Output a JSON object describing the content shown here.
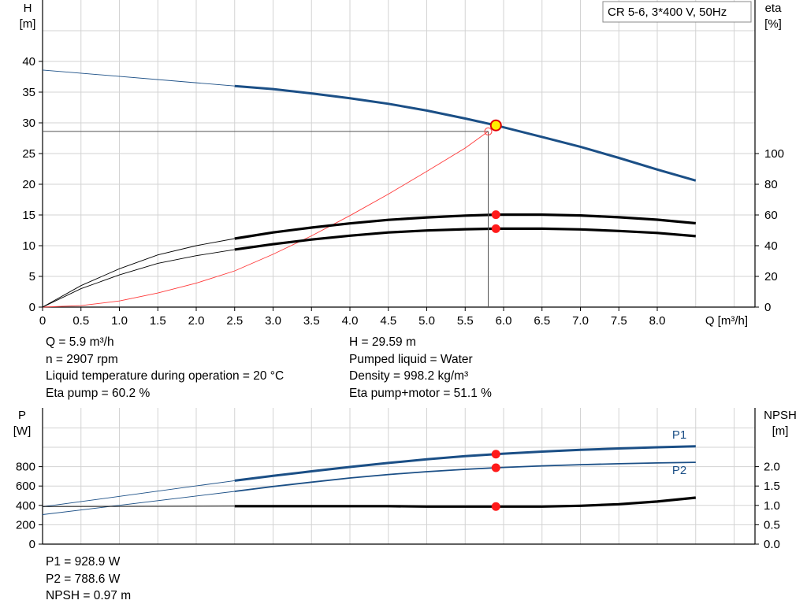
{
  "chart_data": [
    {
      "type": "line",
      "title": "CR 5-6, 3*400 V, 50Hz",
      "xlabel": "Q [m³/h]",
      "ylabel": "H",
      "ylabel_unit": "[m]",
      "y2label": "eta",
      "y2label_unit": "[%]",
      "xlim": [
        0,
        9.2
      ],
      "ylim": [
        0,
        43
      ],
      "y2lim": [
        0,
        172
      ],
      "x_ticks": [
        "0",
        "0.5",
        "1.0",
        "1.5",
        "2.0",
        "2.5",
        "3.0",
        "3.5",
        "4.0",
        "4.5",
        "5.0",
        "5.5",
        "6.0",
        "6.5",
        "7.0",
        "7.5",
        "8.0"
      ],
      "y_ticks": [
        "0",
        "5",
        "10",
        "15",
        "20",
        "25",
        "30",
        "35",
        "40"
      ],
      "y2_ticks": [
        "0",
        "20",
        "40",
        "60",
        "80",
        "100"
      ],
      "grid": true,
      "series": [
        {
          "id": "head",
          "color": "#1b4f86",
          "x": [
            0,
            2.5,
            3.0,
            3.5,
            4.0,
            4.5,
            5.0,
            5.5,
            5.9,
            6.5,
            7.0,
            7.5,
            8.0,
            8.5
          ],
          "values": [
            38.6,
            36.0,
            35.5,
            34.8,
            34.0,
            33.1,
            32.0,
            30.7,
            29.59,
            27.7,
            26.1,
            24.3,
            22.4,
            20.6
          ]
        },
        {
          "id": "eta-pump",
          "color": "#000000",
          "axis": "right",
          "x": [
            0,
            0.5,
            1.0,
            1.5,
            2.0,
            2.5,
            3.0,
            3.5,
            4.0,
            4.5,
            5.0,
            5.5,
            5.9,
            6.5,
            7.0,
            7.5,
            8.0,
            8.5
          ],
          "values": [
            0,
            14,
            25,
            34,
            40,
            44.6,
            48.6,
            51.8,
            54.5,
            56.8,
            58.4,
            59.6,
            60.2,
            60.2,
            59.7,
            58.5,
            56.9,
            54.6
          ]
        },
        {
          "id": "eta-pump-motor",
          "color": "#000000",
          "axis": "right",
          "x": [
            0,
            0.5,
            1.0,
            1.5,
            2.0,
            2.5,
            3.0,
            3.5,
            4.0,
            4.5,
            5.0,
            5.5,
            5.9,
            6.5,
            7.0,
            7.5,
            8.0,
            8.5
          ],
          "values": [
            0,
            12,
            21,
            28.5,
            33.5,
            37.5,
            41,
            44,
            46.5,
            48.6,
            49.9,
            50.7,
            51.1,
            51.1,
            50.6,
            49.6,
            48.3,
            46.2
          ]
        },
        {
          "id": "efficiency-head-curve",
          "color": "#ff3a3a",
          "x": [
            0,
            0.5,
            1.0,
            1.5,
            2.0,
            2.5,
            3.0,
            3.5,
            4.0,
            4.5,
            5.0,
            5.5,
            5.8
          ],
          "values": [
            0,
            0.25,
            1.0,
            2.3,
            3.9,
            5.9,
            8.6,
            11.6,
            14.9,
            18.4,
            22.1,
            25.9,
            28.6
          ]
        }
      ],
      "duty_point": {
        "q": 5.9,
        "h": 29.59,
        "eta_pump": 60.2,
        "eta_total": 51.1
      },
      "reference_point": {
        "q": 5.8,
        "h": 28.6
      }
    },
    {
      "type": "line",
      "ylabel": "P",
      "ylabel_unit": "[W]",
      "y2label": "NPSH",
      "y2label_unit": "[m]",
      "xlim": [
        0,
        9.2
      ],
      "ylim": [
        0,
        1200
      ],
      "y2lim": [
        0,
        3.0
      ],
      "y_ticks": [
        "0",
        "200",
        "400",
        "600",
        "800"
      ],
      "y2_ticks": [
        "0.0",
        "0.5",
        "1.0",
        "1.5",
        "2.0"
      ],
      "grid": true,
      "series": [
        {
          "id": "p1",
          "name": "P1",
          "color": "#1b4f86",
          "x": [
            0,
            2.5,
            3.0,
            3.5,
            4.0,
            4.5,
            5.0,
            5.5,
            5.9,
            6.5,
            7.0,
            7.5,
            8.0,
            8.5
          ],
          "values": [
            385,
            655,
            705,
            752,
            797,
            838,
            876,
            908,
            928.9,
            955,
            973,
            988,
            1000,
            1010
          ]
        },
        {
          "id": "p2",
          "name": "P2",
          "color": "#1b4f86",
          "x": [
            0,
            2.5,
            3.0,
            3.5,
            4.0,
            4.5,
            5.0,
            5.5,
            5.9,
            6.5,
            7.0,
            7.5,
            8.0,
            8.5
          ],
          "values": [
            305,
            545,
            595,
            640,
            683,
            719,
            748,
            772,
            788.6,
            808,
            820,
            830,
            838,
            845
          ]
        },
        {
          "id": "npsh",
          "color": "#000000",
          "axis": "right",
          "x": [
            0,
            2.5,
            3.0,
            3.5,
            4.0,
            4.5,
            5.0,
            5.5,
            5.9,
            6.5,
            7.0,
            7.5,
            8.0,
            8.5
          ],
          "values": [
            0.97,
            0.98,
            0.98,
            0.98,
            0.98,
            0.98,
            0.97,
            0.97,
            0.97,
            0.97,
            0.99,
            1.03,
            1.1,
            1.2
          ]
        }
      ],
      "duty_point": {
        "q": 5.9,
        "p1": 928.9,
        "p2": 788.6,
        "npsh": 0.97
      }
    }
  ],
  "info": {
    "left": [
      "Q = 5.9 m³/h",
      "n = 2907 rpm",
      "Liquid temperature during operation = 20 °C",
      "Eta pump = 60.2 %"
    ],
    "right": [
      "H = 29.59 m",
      "Pumped liquid = Water",
      "Density = 998.2 kg/m³",
      "Eta pump+motor = 51.1 %"
    ],
    "bottom": [
      "P1 = 928.9 W",
      "P2 = 788.6 W",
      "NPSH = 0.97 m"
    ]
  }
}
